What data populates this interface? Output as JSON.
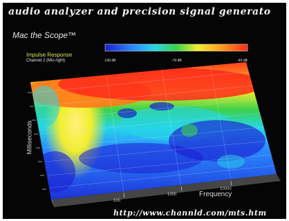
{
  "header": {
    "headline": "audio analyzer and precision signal generato",
    "brand": "Mac the Scope™"
  },
  "plot": {
    "title": "Impulse Response",
    "subtitle": "Channel 2 (Mic-right)",
    "scale_labels": [
      "-130 dB",
      "-70 dB",
      "-40 dB"
    ],
    "y_label": "Milliseconds",
    "x_label": "Frequency",
    "x_ticks": [
      "100",
      "1000",
      "10000"
    ],
    "colormap": [
      "#1b1fd1",
      "#2a8cff",
      "#27d6e8",
      "#3ad24a",
      "#f2ee2e",
      "#ff9a1f",
      "#ff2a1a"
    ]
  },
  "footer": {
    "url": "http://www.channld.com/mts.htm"
  }
}
